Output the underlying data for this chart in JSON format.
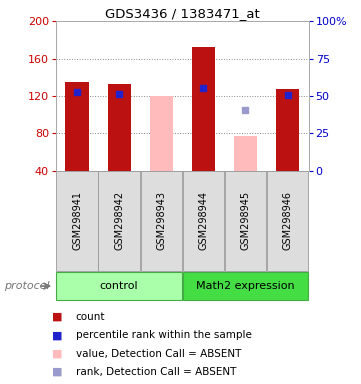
{
  "title": "GDS3436 / 1383471_at",
  "samples": [
    "GSM298941",
    "GSM298942",
    "GSM298943",
    "GSM298944",
    "GSM298945",
    "GSM298946"
  ],
  "group_labels": [
    "control",
    "Math2 expression"
  ],
  "group_colors": [
    "#aaffaa",
    "#44dd44"
  ],
  "group_ranges": [
    [
      0,
      2
    ],
    [
      3,
      5
    ]
  ],
  "ylim_left": [
    40,
    200
  ],
  "ylim_right": [
    0,
    100
  ],
  "yticks_left": [
    40,
    80,
    120,
    160,
    200
  ],
  "yticks_right": [
    0,
    25,
    50,
    75,
    100
  ],
  "yticklabels_right": [
    "0",
    "25",
    "50",
    "75",
    "100%"
  ],
  "red_bars": {
    "present": [
      true,
      true,
      false,
      true,
      false,
      true
    ],
    "heights": [
      135,
      133,
      0,
      172,
      0,
      128
    ],
    "color": "#bb1111"
  },
  "pink_bars": {
    "present": [
      false,
      false,
      true,
      false,
      true,
      false
    ],
    "heights": [
      0,
      0,
      120,
      0,
      77,
      0
    ],
    "color": "#ffbbbb"
  },
  "blue_squares": {
    "present": [
      true,
      true,
      false,
      true,
      false,
      true
    ],
    "values": [
      124,
      122,
      0,
      129,
      0,
      121
    ],
    "color": "#2222cc",
    "size": 5
  },
  "light_blue_squares": {
    "present": [
      false,
      false,
      false,
      false,
      true,
      false
    ],
    "values": [
      0,
      0,
      0,
      0,
      105,
      0
    ],
    "color": "#9999cc",
    "size": 4
  },
  "bar_width": 0.55,
  "bar_bottom": 40,
  "grid_color": "#888888",
  "legend_items": [
    {
      "color": "#bb1111",
      "label": "count"
    },
    {
      "color": "#2222cc",
      "label": "percentile rank within the sample"
    },
    {
      "color": "#ffbbbb",
      "label": "value, Detection Call = ABSENT"
    },
    {
      "color": "#9999cc",
      "label": "rank, Detection Call = ABSENT"
    }
  ]
}
